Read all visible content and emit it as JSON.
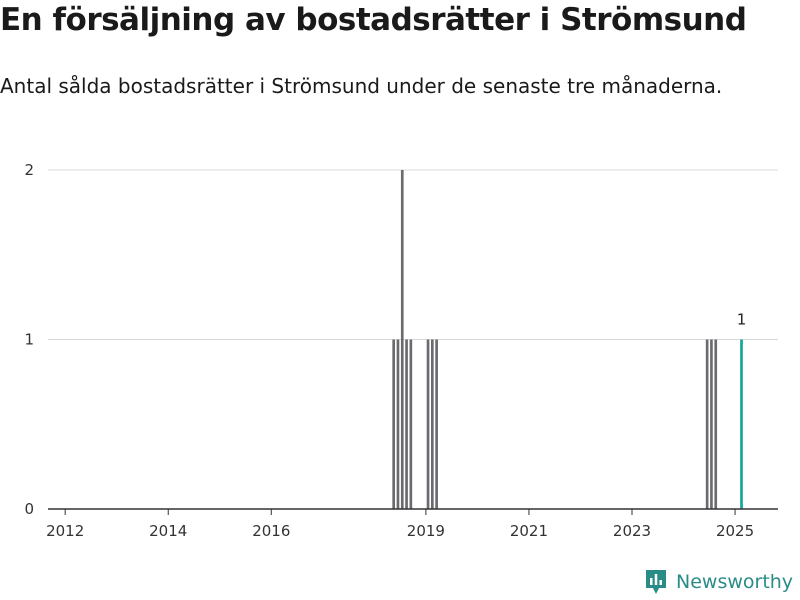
{
  "header": {
    "title": "En försäljning av bostadsrätter i Strömsund",
    "subtitle": "Antal sålda bostadsrätter i Strömsund under de senaste tre månaderna."
  },
  "brand": {
    "name": "Newsworthy",
    "logo_icon": "newsworthy-logo-icon",
    "color": "#2a8c87"
  },
  "colors": {
    "bar": "#6b6b6f",
    "highlight": "#13a59a",
    "grid": "#d8d8d8",
    "axis": "#333333"
  },
  "chart_data": {
    "type": "bar",
    "x": [
      "2018-05",
      "2018-06",
      "2018-07",
      "2018-08",
      "2018-09",
      "2019-01",
      "2019-02",
      "2019-03",
      "2024-06",
      "2024-07",
      "2024-08",
      "2025-02"
    ],
    "values": [
      1,
      1,
      2,
      1,
      1,
      1,
      1,
      1,
      1,
      1,
      1,
      1
    ],
    "highlight": {
      "x": "2025-02",
      "value": 1,
      "label": "1"
    },
    "xlim": [
      "2011-09",
      "2025-11"
    ],
    "ylim": [
      0,
      2
    ],
    "yticks": [
      0,
      1,
      2
    ],
    "ytick_labels": [
      "0",
      "1",
      "2"
    ],
    "xticks": [
      "2012",
      "2014",
      "2016",
      "2019",
      "2021",
      "2023",
      "2025"
    ],
    "grid": true,
    "legend": "none",
    "title": "",
    "xlabel": "",
    "ylabel": ""
  }
}
